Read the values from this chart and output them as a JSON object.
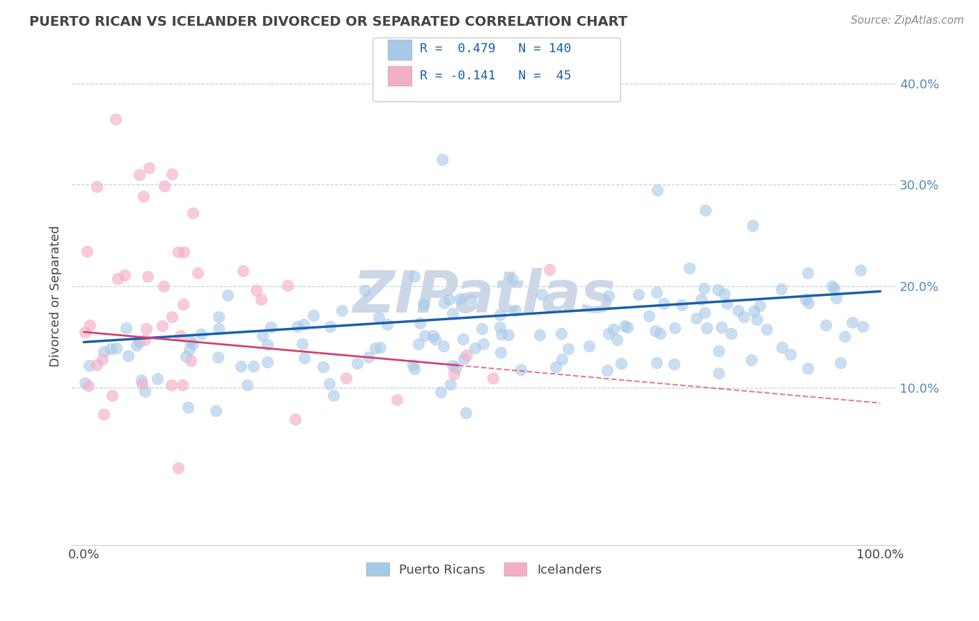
{
  "title": "PUERTO RICAN VS ICELANDER DIVORCED OR SEPARATED CORRELATION CHART",
  "source": "Source: ZipAtlas.com",
  "ylabel": "Divorced or Separated",
  "watermark": "ZIPatlas",
  "pr_R": 0.479,
  "pr_N": 140,
  "icel_R": -0.141,
  "icel_N": 45,
  "blue_color": "#a8c8e8",
  "pink_color": "#f4afc8",
  "blue_line_color": "#1a5fa8",
  "pink_line_color": "#d44070",
  "grid_color": "#b8c4d4",
  "title_color": "#444444",
  "source_color": "#888888",
  "legend_text_color": "#1a5fa8",
  "background_color": "#ffffff",
  "watermark_color": "#ccd8e8"
}
